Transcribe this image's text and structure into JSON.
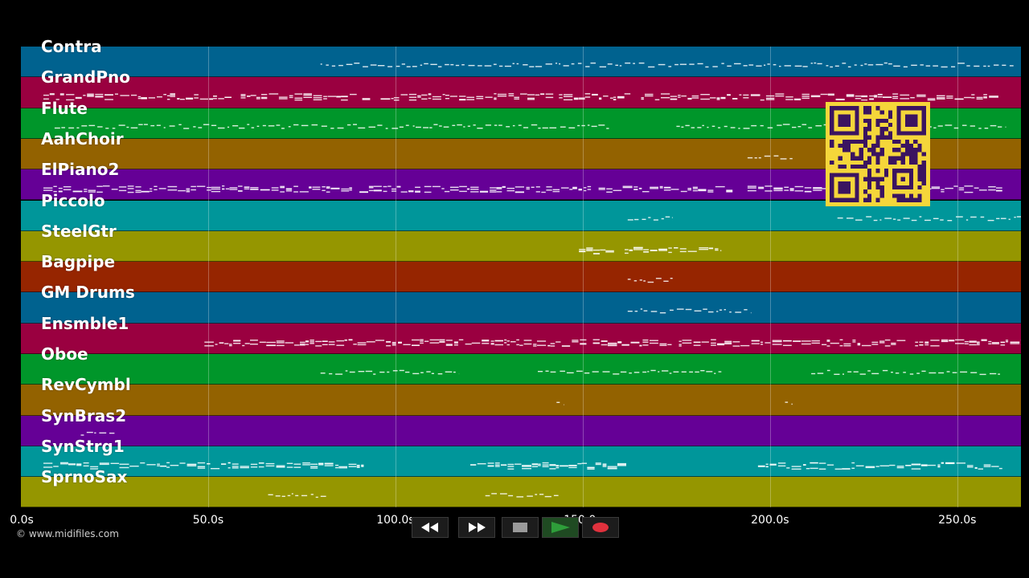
{
  "tracks": [
    {
      "name": "Contra",
      "color": "#00628f"
    },
    {
      "name": "GrandPno",
      "color": "#9a0040"
    },
    {
      "name": "Flute",
      "color": "#00962a"
    },
    {
      "name": "AahChoir",
      "color": "#936200"
    },
    {
      "name": "ElPiano2",
      "color": "#650096"
    },
    {
      "name": "Piccolo",
      "color": "#00969a"
    },
    {
      "name": "SteelGtr",
      "color": "#959600"
    },
    {
      "name": "Bagpipe",
      "color": "#962500"
    },
    {
      "name": "GM Drums",
      "color": "#00628f"
    },
    {
      "name": "Ensmble1",
      "color": "#9a0040"
    },
    {
      "name": "Oboe",
      "color": "#00962a"
    },
    {
      "name": "RevCymbl",
      "color": "#936200"
    },
    {
      "name": "SynBras2",
      "color": "#650096"
    },
    {
      "name": "SynStrg1",
      "color": "#00969a"
    },
    {
      "name": "SprnoSax",
      "color": "#959600"
    }
  ],
  "time_axis": {
    "ticks": [
      "0.0s",
      "50.0s",
      "100.0s",
      "150.0s",
      "200.0s",
      "250.0s"
    ],
    "tick_values": [
      0,
      50,
      100,
      150,
      200,
      250
    ],
    "max_seconds": 267
  },
  "copyright": "© www.midifiles.com",
  "qr_code": {
    "label": "qr-code"
  },
  "transport": {
    "rewind_icon": "rewind-icon",
    "fast_forward_icon": "fast-forward-icon",
    "stop_icon": "stop-icon",
    "play_icon": "play-icon",
    "record_icon": "record-icon",
    "play_color": "#2e9e3a",
    "record_color": "#e0313d"
  },
  "note_segments": [
    {
      "track": 0,
      "ranges": [
        [
          80,
          265
        ]
      ],
      "density": "sparse"
    },
    {
      "track": 1,
      "ranges": [
        [
          6,
          261
        ]
      ],
      "density": "dense"
    },
    {
      "track": 2,
      "ranges": [
        [
          9,
          157
        ],
        [
          175,
          215
        ],
        [
          240,
          263
        ]
      ],
      "density": "sparse"
    },
    {
      "track": 3,
      "ranges": [
        [
          194,
          206
        ]
      ],
      "density": "sparse"
    },
    {
      "track": 4,
      "ranges": [
        [
          6,
          190
        ],
        [
          194,
          262
        ]
      ],
      "density": "dense"
    },
    {
      "track": 5,
      "ranges": [
        [
          162,
          174
        ],
        [
          218,
          267
        ]
      ],
      "density": "sparse"
    },
    {
      "track": 6,
      "ranges": [
        [
          149,
          187
        ]
      ],
      "density": "dense"
    },
    {
      "track": 7,
      "ranges": [
        [
          162,
          174
        ]
      ],
      "density": "sparse"
    },
    {
      "track": 8,
      "ranges": [
        [
          162,
          195
        ]
      ],
      "density": "sparse"
    },
    {
      "track": 9,
      "ranges": [
        [
          49,
          267
        ]
      ],
      "density": "dense"
    },
    {
      "track": 10,
      "ranges": [
        [
          80,
          117
        ],
        [
          138,
          187
        ],
        [
          211,
          262
        ]
      ],
      "density": "sparse"
    },
    {
      "track": 11,
      "ranges": [
        [
          143,
          145
        ],
        [
          204,
          206
        ]
      ],
      "density": "sparse"
    },
    {
      "track": 12,
      "ranges": [
        [
          16,
          25
        ]
      ],
      "density": "sparse"
    },
    {
      "track": 13,
      "ranges": [
        [
          6,
          92
        ],
        [
          120,
          162
        ],
        [
          194,
          262
        ]
      ],
      "density": "dense"
    },
    {
      "track": 14,
      "ranges": [
        [
          66,
          82
        ],
        [
          124,
          144
        ]
      ],
      "density": "sparse"
    }
  ]
}
